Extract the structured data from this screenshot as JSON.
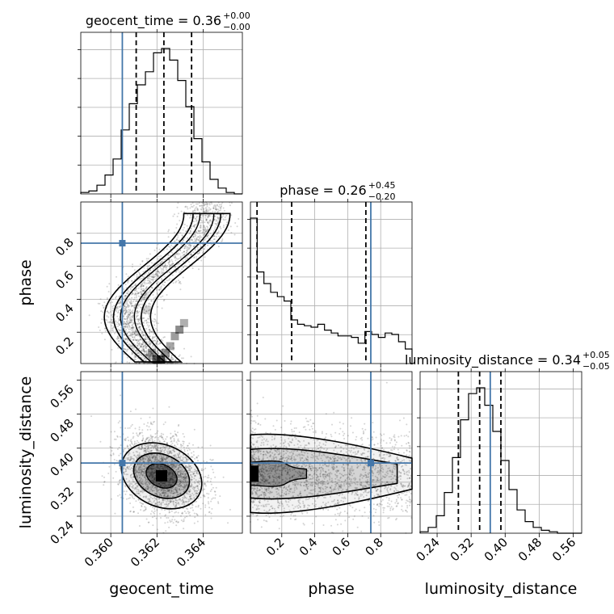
{
  "chart_data": {
    "type": "corner",
    "colors": {
      "truth": "#4477aa",
      "hist": "#000000",
      "grid": "#b0b0b0"
    },
    "parameters": [
      {
        "name": "geocent_time",
        "label": "geocent_time",
        "range": [
          0.3587,
          0.3657
        ],
        "ticks": [
          0.36,
          0.362,
          0.364
        ],
        "tick_labels": [
          "0.360",
          "0.362",
          "0.364"
        ],
        "truth": 0.3605,
        "title": {
          "main": "geocent_time = 0.36",
          "sup": "+0.00",
          "sub": "−0.00"
        },
        "quantiles": [
          0.3611,
          0.3623,
          0.3635
        ],
        "hist": [
          0.01,
          0.02,
          0.06,
          0.13,
          0.24,
          0.44,
          0.62,
          0.75,
          0.84,
          0.97,
          1.0,
          0.92,
          0.78,
          0.6,
          0.38,
          0.22,
          0.1,
          0.04,
          0.01,
          0.0
        ]
      },
      {
        "name": "phase",
        "label": "phase",
        "range": [
          0.01,
          0.99
        ],
        "ticks": [
          0.2,
          0.4,
          0.6,
          0.8
        ],
        "tick_labels": [
          "0.2",
          "0.4",
          "0.6",
          "0.8"
        ],
        "truth": 0.74,
        "title": {
          "main": "phase = 0.26",
          "sup": "+0.45",
          "sub": "−0.20"
        },
        "quantiles": [
          0.05,
          0.26,
          0.71
        ],
        "hist": [
          1.0,
          0.63,
          0.55,
          0.49,
          0.46,
          0.43,
          0.3,
          0.27,
          0.26,
          0.25,
          0.27,
          0.23,
          0.21,
          0.19,
          0.19,
          0.18,
          0.14,
          0.22,
          0.2,
          0.18,
          0.21,
          0.2,
          0.15,
          0.1
        ]
      },
      {
        "name": "luminosity_distance",
        "label": "luminosity_distance",
        "range": [
          0.2,
          0.58
        ],
        "ticks": [
          0.24,
          0.32,
          0.4,
          0.48,
          0.56
        ],
        "tick_labels": [
          "0.24",
          "0.32",
          "0.40",
          "0.48",
          "0.56"
        ],
        "truth": 0.365,
        "title": {
          "main": "luminosity_distance = 0.34",
          "sup": "+0.05",
          "sub": "−0.05"
        },
        "quantiles": [
          0.29,
          0.34,
          0.39
        ],
        "hist": [
          0.01,
          0.04,
          0.12,
          0.28,
          0.52,
          0.78,
          0.96,
          1.0,
          0.88,
          0.7,
          0.5,
          0.3,
          0.16,
          0.08,
          0.04,
          0.02,
          0.01,
          0.0,
          0.0,
          0.0
        ]
      }
    ]
  }
}
